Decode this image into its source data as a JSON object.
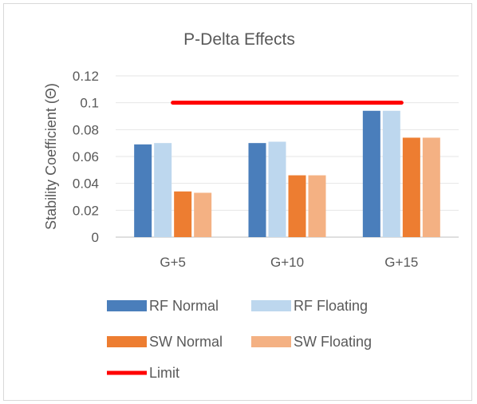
{
  "chart_data": {
    "type": "bar",
    "title": "P-Delta Effects",
    "ylabel": "Stability Coefficient (Θ)",
    "xlabel": "",
    "categories": [
      "G+5",
      "G+10",
      "G+15"
    ],
    "ylim": [
      0,
      0.12
    ],
    "yticks": [
      "0",
      "0.02",
      "0.04",
      "0.06",
      "0.08",
      "0.1",
      "0.12"
    ],
    "grid": true,
    "legend_position": "bottom",
    "series": [
      {
        "name": "RF Normal",
        "values": [
          0.069,
          0.07,
          0.094
        ],
        "color": "#4a7ebb"
      },
      {
        "name": "RF Floating",
        "values": [
          0.07,
          0.071,
          0.094
        ],
        "color": "#bdd7ee"
      },
      {
        "name": "SW Normal",
        "values": [
          0.034,
          0.046,
          0.074
        ],
        "color": "#ed7d31"
      },
      {
        "name": "SW Floating",
        "values": [
          0.033,
          0.046,
          0.074
        ],
        "color": "#f4b183"
      }
    ],
    "limit": {
      "name": "Limit",
      "value": 0.1,
      "color": "#ff0000"
    }
  }
}
